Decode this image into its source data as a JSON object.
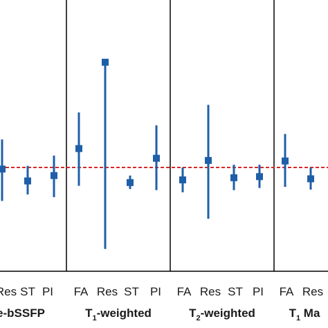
{
  "chart_data": {
    "type": "scatter",
    "style": "point-with-error-bars",
    "reference_line": {
      "y": 0,
      "style": "dashed",
      "color": "#d62728"
    },
    "marker_color": "#1f5fa8",
    "panel_border_color": "#000000",
    "ylim": [
      -1.65,
      1.9
    ],
    "grid": false,
    "groups": [
      {
        "label": "e-bSSFP",
        "label_parts": [
          {
            "text": "e-bSSFP",
            "sub": false
          }
        ],
        "categories": [
          "Res",
          "ST",
          "PI"
        ],
        "points": [
          {
            "category": "Res",
            "value": -0.03,
            "low": -0.62,
            "high": 0.52
          },
          {
            "category": "ST",
            "value": -0.25,
            "low": -0.5,
            "high": 0.03
          },
          {
            "category": "PI",
            "value": -0.15,
            "low": -0.55,
            "high": 0.22
          }
        ]
      },
      {
        "label": "T1-weighted",
        "label_parts": [
          {
            "text": "T",
            "sub": false
          },
          {
            "text": "1",
            "sub": true
          },
          {
            "text": "-weighted",
            "sub": false
          }
        ],
        "categories": [
          "FA",
          "Res",
          "ST",
          "PI"
        ],
        "points": [
          {
            "category": "FA",
            "value": 0.35,
            "low": -0.34,
            "high": 1.02
          },
          {
            "category": "Res",
            "value": 1.95,
            "low": -1.51,
            "high": 1.95
          },
          {
            "category": "ST",
            "value": -0.28,
            "low": -0.4,
            "high": -0.15
          },
          {
            "category": "PI",
            "value": 0.17,
            "low": -0.42,
            "high": 0.78
          }
        ]
      },
      {
        "label": "T2-weighted",
        "label_parts": [
          {
            "text": "T",
            "sub": false
          },
          {
            "text": "2",
            "sub": true
          },
          {
            "text": "-weighted",
            "sub": false
          }
        ],
        "categories": [
          "FA",
          "Res",
          "ST",
          "PI"
        ],
        "points": [
          {
            "category": "FA",
            "value": -0.23,
            "low": -0.46,
            "high": 0.0
          },
          {
            "category": "Res",
            "value": 0.13,
            "low": -0.95,
            "high": 1.16
          },
          {
            "category": "ST",
            "value": -0.19,
            "low": -0.42,
            "high": 0.05
          },
          {
            "category": "PI",
            "value": -0.17,
            "low": -0.38,
            "high": 0.05
          }
        ]
      },
      {
        "label": "T1 Ma",
        "label_parts": [
          {
            "text": "T",
            "sub": false
          },
          {
            "text": "1",
            "sub": true
          },
          {
            "text": " Ma",
            "sub": false
          }
        ],
        "categories": [
          "FA",
          "Res"
        ],
        "points": [
          {
            "category": "FA",
            "value": 0.12,
            "low": -0.36,
            "high": 0.62
          },
          {
            "category": "Res",
            "value": -0.21,
            "low": -0.41,
            "high": 0.0
          }
        ]
      }
    ]
  }
}
